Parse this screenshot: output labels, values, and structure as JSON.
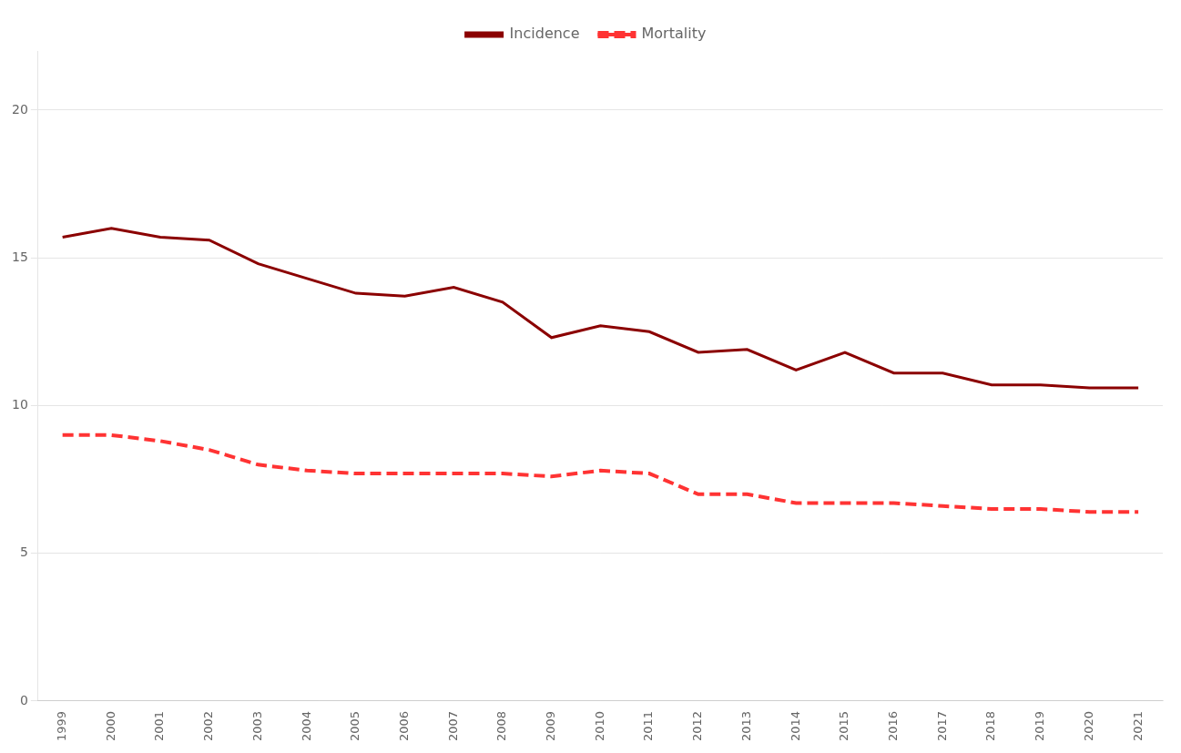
{
  "chart_data": {
    "type": "line",
    "categories": [
      "1999",
      "2000",
      "2001",
      "2002",
      "2003",
      "2004",
      "2005",
      "2006",
      "2007",
      "2008",
      "2009",
      "2010",
      "2011",
      "2012",
      "2013",
      "2014",
      "2015",
      "2016",
      "2017",
      "2018",
      "2019",
      "2020",
      "2021"
    ],
    "series": [
      {
        "name": "Incidence",
        "color": "#8B0000",
        "line_style": "solid",
        "values": [
          15.7,
          16.0,
          15.7,
          15.6,
          14.8,
          14.3,
          13.8,
          13.7,
          14.0,
          13.5,
          12.3,
          12.7,
          12.5,
          11.8,
          11.9,
          11.2,
          11.8,
          11.1,
          11.1,
          10.7,
          10.7,
          10.6,
          10.6
        ]
      },
      {
        "name": "Mortality",
        "color": "#FF3333",
        "line_style": "dashed",
        "values": [
          9.0,
          9.0,
          8.8,
          8.5,
          8.0,
          7.8,
          7.7,
          7.7,
          7.7,
          7.7,
          7.6,
          7.8,
          7.7,
          7.0,
          7.0,
          6.7,
          6.7,
          6.7,
          6.6,
          6.5,
          6.5,
          6.4,
          6.4
        ]
      }
    ],
    "ylim": [
      0,
      22
    ],
    "yticks": [
      0,
      5,
      10,
      15,
      20
    ],
    "grid": "y",
    "legend": "top"
  }
}
